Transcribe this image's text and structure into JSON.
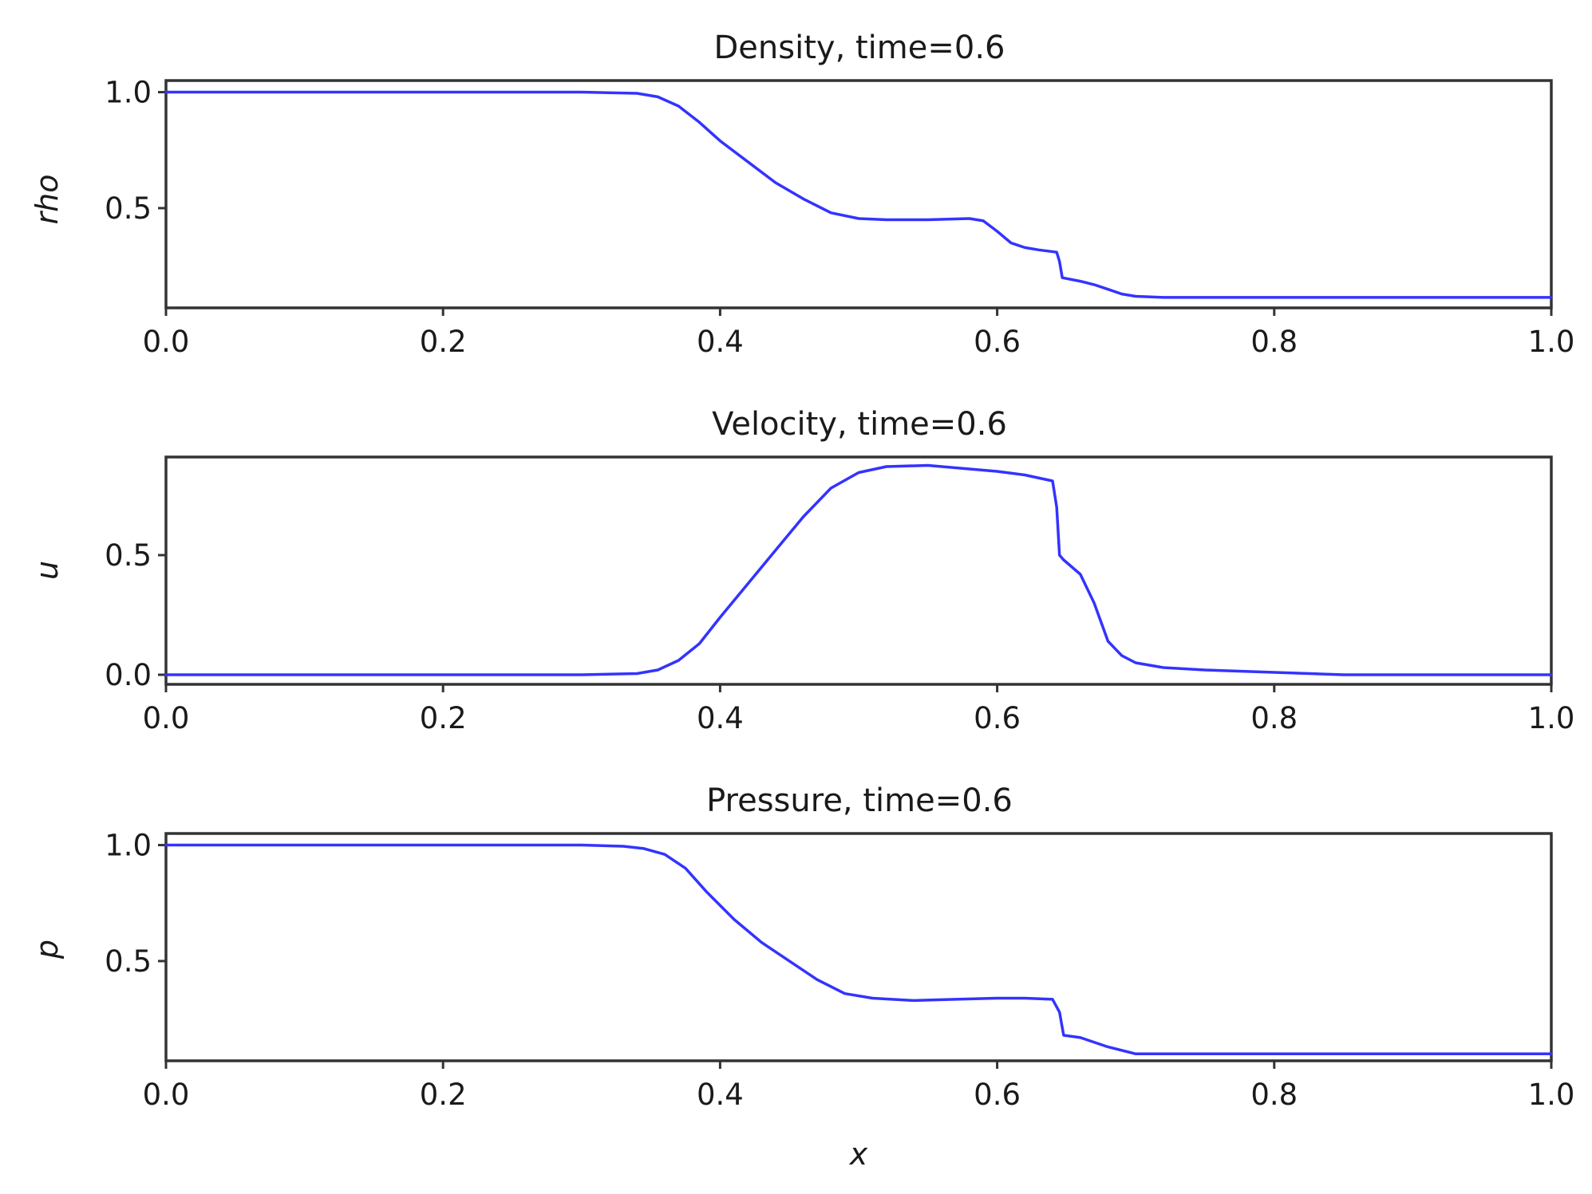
{
  "chart_data": [
    {
      "type": "line",
      "title": "Density, time=0.6",
      "xlabel": "",
      "ylabel": "rho",
      "xlim": [
        0.0,
        1.0
      ],
      "ylim": [
        0.07,
        1.05
      ],
      "xticks": [
        "0.0",
        "0.2",
        "0.4",
        "0.6",
        "0.8",
        "1.0"
      ],
      "yticks": [
        {
          "value": 0.5,
          "label": "0.5"
        },
        {
          "value": 1.0,
          "label": "1.0"
        }
      ],
      "grid": false,
      "series": [
        {
          "color": "#3333ff",
          "x": [
            0.0,
            0.1,
            0.2,
            0.3,
            0.34,
            0.355,
            0.37,
            0.385,
            0.4,
            0.42,
            0.44,
            0.46,
            0.48,
            0.5,
            0.52,
            0.55,
            0.58,
            0.59,
            0.6,
            0.61,
            0.62,
            0.63,
            0.643,
            0.645,
            0.647,
            0.66,
            0.67,
            0.68,
            0.69,
            0.7,
            0.72,
            0.8,
            0.9,
            1.0
          ],
          "y": [
            1.0,
            1.0,
            1.0,
            1.0,
            0.995,
            0.98,
            0.94,
            0.87,
            0.79,
            0.7,
            0.61,
            0.54,
            0.48,
            0.455,
            0.45,
            0.45,
            0.455,
            0.445,
            0.4,
            0.35,
            0.33,
            0.32,
            0.31,
            0.27,
            0.2,
            0.185,
            0.17,
            0.15,
            0.13,
            0.12,
            0.115,
            0.115,
            0.115,
            0.115
          ]
        }
      ]
    },
    {
      "type": "line",
      "title": "Velocity, time=0.6",
      "xlabel": "",
      "ylabel": "u",
      "xlim": [
        0.0,
        1.0
      ],
      "ylim": [
        -0.04,
        0.91
      ],
      "xticks": [
        "0.0",
        "0.2",
        "0.4",
        "0.6",
        "0.8",
        "1.0"
      ],
      "yticks": [
        {
          "value": 0.0,
          "label": "0.0"
        },
        {
          "value": 0.5,
          "label": "0.5"
        }
      ],
      "grid": false,
      "series": [
        {
          "color": "#3333ff",
          "x": [
            0.0,
            0.1,
            0.2,
            0.3,
            0.34,
            0.355,
            0.37,
            0.385,
            0.4,
            0.42,
            0.44,
            0.46,
            0.48,
            0.5,
            0.52,
            0.55,
            0.58,
            0.6,
            0.62,
            0.64,
            0.643,
            0.645,
            0.648,
            0.66,
            0.67,
            0.68,
            0.69,
            0.7,
            0.72,
            0.75,
            0.8,
            0.85,
            0.9,
            1.0
          ],
          "y": [
            0.0,
            0.0,
            0.0,
            0.0,
            0.005,
            0.02,
            0.06,
            0.13,
            0.24,
            0.38,
            0.52,
            0.66,
            0.78,
            0.845,
            0.87,
            0.875,
            0.86,
            0.85,
            0.835,
            0.81,
            0.7,
            0.5,
            0.48,
            0.42,
            0.3,
            0.14,
            0.08,
            0.05,
            0.03,
            0.02,
            0.01,
            0.0,
            0.0,
            0.0
          ]
        }
      ]
    },
    {
      "type": "line",
      "title": "Pressure, time=0.6",
      "xlabel": "x",
      "ylabel": "p",
      "xlim": [
        0.0,
        1.0
      ],
      "ylim": [
        0.07,
        1.05
      ],
      "xticks": [
        "0.0",
        "0.2",
        "0.4",
        "0.6",
        "0.8",
        "1.0"
      ],
      "yticks": [
        {
          "value": 0.5,
          "label": "0.5"
        },
        {
          "value": 1.0,
          "label": "1.0"
        }
      ],
      "grid": false,
      "series": [
        {
          "color": "#3333ff",
          "x": [
            0.0,
            0.1,
            0.2,
            0.3,
            0.33,
            0.345,
            0.36,
            0.375,
            0.39,
            0.41,
            0.43,
            0.45,
            0.47,
            0.49,
            0.51,
            0.54,
            0.57,
            0.6,
            0.62,
            0.64,
            0.645,
            0.648,
            0.66,
            0.68,
            0.7,
            0.75,
            0.8,
            0.9,
            1.0
          ],
          "y": [
            1.0,
            1.0,
            1.0,
            1.0,
            0.995,
            0.985,
            0.96,
            0.9,
            0.8,
            0.68,
            0.58,
            0.5,
            0.42,
            0.36,
            0.34,
            0.33,
            0.335,
            0.34,
            0.34,
            0.335,
            0.28,
            0.18,
            0.17,
            0.13,
            0.1,
            0.1,
            0.1,
            0.1,
            0.1
          ]
        }
      ]
    }
  ]
}
